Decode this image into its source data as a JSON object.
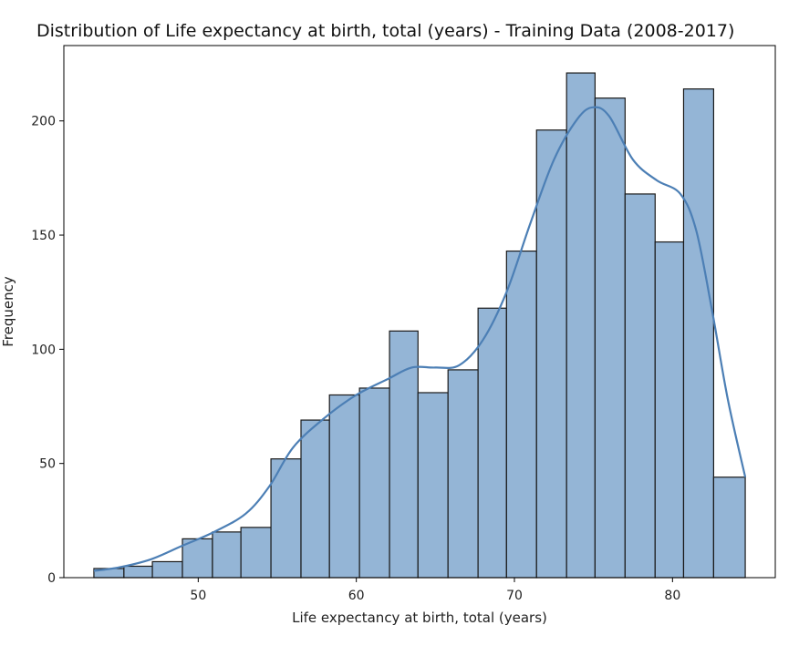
{
  "chart_data": {
    "type": "histogram",
    "title": "Distribution of Life expectancy at birth, total (years) - Training Data (2008-2017)",
    "xlabel": "Life expectancy at birth, total (years)",
    "ylabel": "Frequency",
    "xlim": [
      41.5,
      86.5
    ],
    "ylim": [
      0,
      233
    ],
    "xticks": [
      50,
      60,
      70,
      80
    ],
    "yticks": [
      0,
      50,
      100,
      150,
      200
    ],
    "grid": false,
    "bar_color": "#94b5d6",
    "edge_color": "#1a1a1a",
    "kde_color": "#4c7fb5",
    "bins": [
      {
        "x0": 43.4,
        "x1": 45.3,
        "count": 4
      },
      {
        "x0": 45.3,
        "x1": 47.1,
        "count": 5
      },
      {
        "x0": 47.1,
        "x1": 49.0,
        "count": 7
      },
      {
        "x0": 49.0,
        "x1": 50.9,
        "count": 17
      },
      {
        "x0": 50.9,
        "x1": 52.7,
        "count": 20
      },
      {
        "x0": 52.7,
        "x1": 54.6,
        "count": 22
      },
      {
        "x0": 54.6,
        "x1": 56.5,
        "count": 52
      },
      {
        "x0": 56.5,
        "x1": 58.3,
        "count": 69
      },
      {
        "x0": 58.3,
        "x1": 60.2,
        "count": 80
      },
      {
        "x0": 60.2,
        "x1": 62.1,
        "count": 83
      },
      {
        "x0": 62.1,
        "x1": 63.9,
        "count": 108
      },
      {
        "x0": 63.9,
        "x1": 65.8,
        "count": 81
      },
      {
        "x0": 65.8,
        "x1": 67.7,
        "count": 91
      },
      {
        "x0": 67.7,
        "x1": 69.5,
        "count": 118
      },
      {
        "x0": 69.5,
        "x1": 71.4,
        "count": 143
      },
      {
        "x0": 71.4,
        "x1": 73.3,
        "count": 196
      },
      {
        "x0": 73.3,
        "x1": 75.1,
        "count": 221
      },
      {
        "x0": 75.1,
        "x1": 77.0,
        "count": 210
      },
      {
        "x0": 77.0,
        "x1": 78.9,
        "count": 168
      },
      {
        "x0": 78.9,
        "x1": 80.7,
        "count": 147
      },
      {
        "x0": 80.7,
        "x1": 82.6,
        "count": 214
      },
      {
        "x0": 82.6,
        "x1": 84.6,
        "count": 44
      }
    ],
    "kde": {
      "x": [
        43.4,
        45,
        47,
        49,
        51,
        53,
        54.5,
        56,
        58,
        60,
        62,
        63.5,
        65,
        66.5,
        68,
        69.5,
        71,
        72.5,
        74,
        75,
        76,
        77.5,
        79,
        80.5,
        81.5,
        82.5,
        83.5,
        84.6
      ],
      "y": [
        3,
        4.5,
        8,
        14,
        20,
        28,
        40,
        57,
        70,
        80,
        87,
        92,
        92,
        93,
        104,
        125,
        155,
        183,
        201,
        206,
        202,
        183,
        174,
        168,
        152,
        117,
        78,
        44
      ]
    }
  }
}
